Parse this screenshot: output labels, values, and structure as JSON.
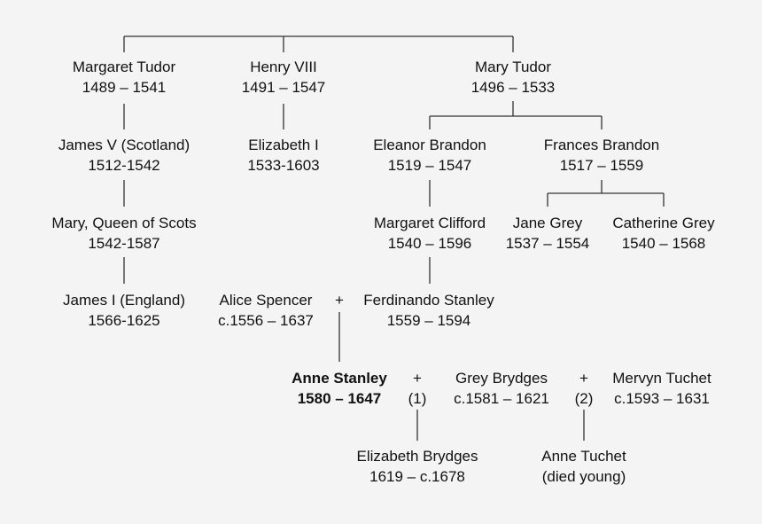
{
  "people": {
    "margaret_tudor": {
      "name": "Margaret Tudor",
      "dates": "1489 – 1541"
    },
    "henry_viii": {
      "name": "Henry VIII",
      "dates": "1491 – 1547"
    },
    "mary_tudor": {
      "name": "Mary Tudor",
      "dates": "1496 – 1533"
    },
    "james_v": {
      "name": "James V (Scotland)",
      "dates": "1512-1542"
    },
    "elizabeth_i": {
      "name": "Elizabeth I",
      "dates": "1533-1603"
    },
    "eleanor_brandon": {
      "name": "Eleanor Brandon",
      "dates": "1519 – 1547"
    },
    "frances_brandon": {
      "name": "Frances Brandon",
      "dates": "1517 – 1559"
    },
    "mary_queen_of_scots": {
      "name": "Mary, Queen of Scots",
      "dates": "1542-1587"
    },
    "margaret_clifford": {
      "name": "Margaret Clifford",
      "dates": "1540 – 1596"
    },
    "jane_grey": {
      "name": "Jane Grey",
      "dates": "1537 – 1554"
    },
    "catherine_grey": {
      "name": "Catherine Grey",
      "dates": "1540 – 1568"
    },
    "james_i": {
      "name": "James I (England)",
      "dates": "1566-1625"
    },
    "alice_spencer": {
      "name": "Alice Spencer",
      "dates": "c.1556 – 1637"
    },
    "ferdinando_stanley": {
      "name": "Ferdinando Stanley",
      "dates": "1559 – 1594"
    },
    "anne_stanley": {
      "name": "Anne Stanley",
      "dates": "1580 – 1647"
    },
    "grey_brydges": {
      "name": "Grey Brydges",
      "dates": "c.1581 – 1621"
    },
    "mervyn_tuchet": {
      "name": "Mervyn Tuchet",
      "dates": "c.1593 – 1631"
    },
    "elizabeth_brydges": {
      "name": "Elizabeth Brydges",
      "dates": "1619 – c.1678"
    },
    "anne_tuchet": {
      "name": "Anne Tuchet",
      "dates": "(died young)"
    }
  },
  "marriages": {
    "spencer_stanley": {
      "symbol": "+"
    },
    "stanley_brydges": {
      "symbol": "+",
      "number": "(1)"
    },
    "stanley_tuchet": {
      "symbol": "+",
      "number": "(2)"
    }
  }
}
